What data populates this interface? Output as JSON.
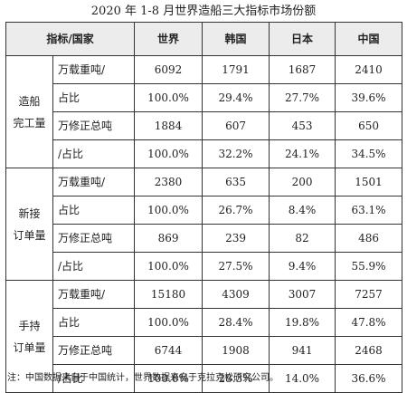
{
  "title": "2020 年 1-8 月世界造船三大指标市场份额",
  "header": {
    "corner": "指标/国家",
    "world": "世界",
    "korea": "韩国",
    "japan": "日本",
    "china": "中国"
  },
  "groups": [
    {
      "label": [
        "造船",
        "完工量"
      ],
      "metrics": [
        {
          "name": "万载重吨/",
          "sub": "占比",
          "values": [
            "6092",
            "1791",
            "1687",
            "2410"
          ],
          "shares": [
            "100.0%",
            "29.4%",
            "27.7%",
            "39.6%"
          ]
        },
        {
          "name": "万修正总吨",
          "sub": "/占比",
          "values": [
            "1884",
            "607",
            "453",
            "650"
          ],
          "shares": [
            "100.0%",
            "32.2%",
            "24.1%",
            "34.5%"
          ]
        }
      ]
    },
    {
      "label": [
        "新接",
        "订单量"
      ],
      "metrics": [
        {
          "name": "万载重吨/",
          "sub": "占比",
          "values": [
            "2380",
            "635",
            "200",
            "1501"
          ],
          "shares": [
            "100.0%",
            "26.7%",
            "8.4%",
            "63.1%"
          ]
        },
        {
          "name": "万修正总吨",
          "sub": "/占比",
          "values": [
            "869",
            "239",
            "82",
            "486"
          ],
          "shares": [
            "100.0%",
            "27.5%",
            "9.4%",
            "55.9%"
          ]
        }
      ]
    },
    {
      "label": [
        "手持",
        "订单量"
      ],
      "metrics": [
        {
          "name": "万载重吨/",
          "sub": "占比",
          "values": [
            "15180",
            "4309",
            "3007",
            "7257"
          ],
          "shares": [
            "100.0%",
            "28.4%",
            "19.8%",
            "47.8%"
          ]
        },
        {
          "name": "万修正总吨",
          "sub": "/占比",
          "values": [
            "6744",
            "1908",
            "941",
            "2468"
          ],
          "shares": [
            "100.0%",
            "28.3%",
            "14.0%",
            "36.6%"
          ]
        }
      ]
    }
  ],
  "note": "注：中国数据来自于中国统计，世界数据来自于克拉克松研究公司。"
}
